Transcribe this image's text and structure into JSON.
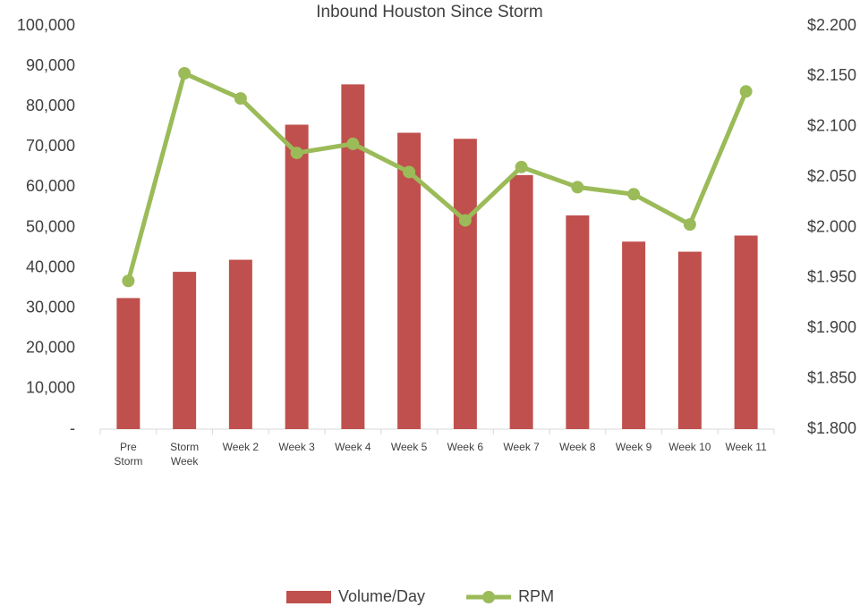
{
  "chart_data": {
    "type": "bar+line",
    "title": "Inbound Houston Since Storm",
    "categories": [
      "Pre Storm",
      "Storm Week",
      "Week 2",
      "Week 3",
      "Week 4",
      "Week 5",
      "Week 6",
      "Week 7",
      "Week 8",
      "Week 9",
      "Week 10",
      "Week 11"
    ],
    "series": [
      {
        "name": "Volume/Day",
        "type": "bar",
        "color": "#c0504d",
        "values": [
          32500,
          39000,
          42000,
          75500,
          85500,
          73500,
          72000,
          63000,
          53000,
          46500,
          44000,
          48000
        ]
      },
      {
        "name": "RPM",
        "type": "line",
        "axis": "y2",
        "color": "#9bbb59",
        "values": [
          1.947,
          2.153,
          2.128,
          2.074,
          2.083,
          2.055,
          2.007,
          2.06,
          2.04,
          2.033,
          2.003,
          2.135
        ]
      }
    ],
    "ylim": [
      0,
      100000
    ],
    "yticks": [
      {
        "value": 0,
        "label": "-"
      },
      {
        "value": 10000,
        "label": "10,000"
      },
      {
        "value": 20000,
        "label": "20,000"
      },
      {
        "value": 30000,
        "label": "30,000"
      },
      {
        "value": 40000,
        "label": "40,000"
      },
      {
        "value": 50000,
        "label": "50,000"
      },
      {
        "value": 60000,
        "label": "60,000"
      },
      {
        "value": 70000,
        "label": "70,000"
      },
      {
        "value": 80000,
        "label": "80,000"
      },
      {
        "value": 90000,
        "label": "90,000"
      },
      {
        "value": 100000,
        "label": "100,000"
      }
    ],
    "y2lim": [
      1.8,
      2.2
    ],
    "y2ticks": [
      {
        "value": 1.8,
        "label": "$1.800"
      },
      {
        "value": 1.85,
        "label": "$1.850"
      },
      {
        "value": 1.9,
        "label": "$1.900"
      },
      {
        "value": 1.95,
        "label": "$1.950"
      },
      {
        "value": 2.0,
        "label": "$2.000"
      },
      {
        "value": 2.05,
        "label": "$2.050"
      },
      {
        "value": 2.1,
        "label": "$2.100"
      },
      {
        "value": 2.15,
        "label": "$2.150"
      },
      {
        "value": 2.2,
        "label": "$2.200"
      }
    ],
    "grid": false,
    "legend": "bottom"
  }
}
